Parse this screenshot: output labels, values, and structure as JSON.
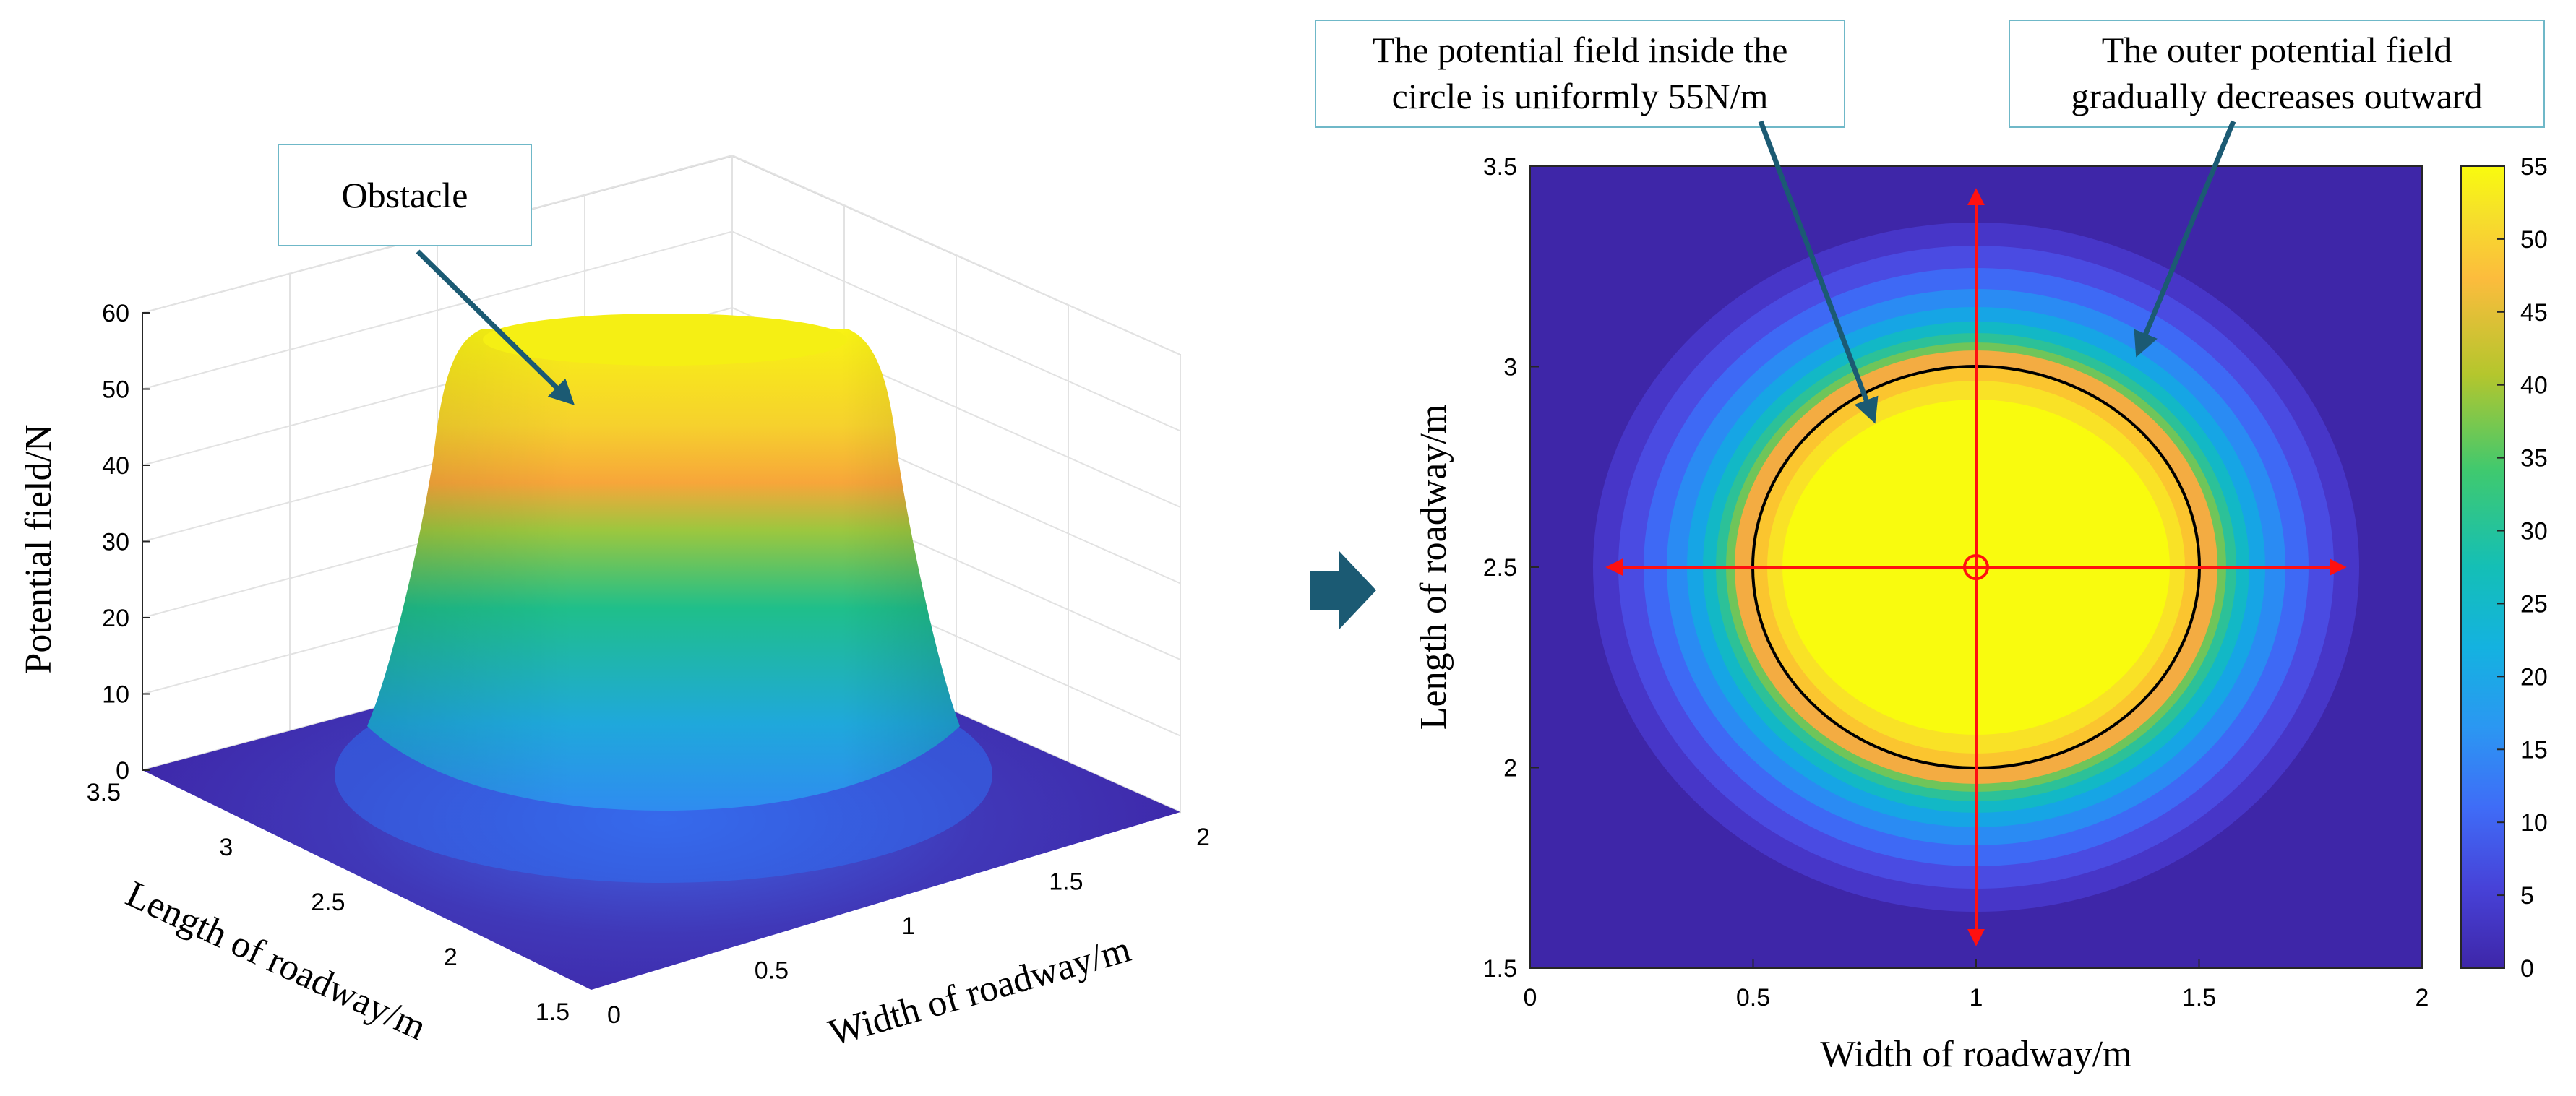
{
  "chart_data": [
    {
      "type": "surface3d",
      "title": "",
      "zlabel": "Potential field/N",
      "xlabel": "Width of roadway/m",
      "ylabel": "Length of roadway/m",
      "x_ticks": [
        "0",
        "0.5",
        "1",
        "1.5",
        "2"
      ],
      "y_ticks": [
        "1.5",
        "2",
        "2.5",
        "3",
        "3.5"
      ],
      "z_ticks": [
        "0",
        "10",
        "20",
        "30",
        "40",
        "50",
        "60"
      ],
      "xlim": [
        0,
        2
      ],
      "ylim": [
        1.5,
        3.5
      ],
      "zlim": [
        0,
        60
      ],
      "surface": {
        "center": [
          1,
          2.5
        ],
        "plateau_radius_m": 0.5,
        "plateau_value": 55,
        "outer_radius_m": 0.85,
        "base_value": 0
      },
      "annotation": "Obstacle"
    },
    {
      "type": "heatmap",
      "title": "",
      "xlabel": "Width of roadway/m",
      "ylabel": "Length of roadway/m",
      "x_ticks": [
        "0",
        "0.5",
        "1",
        "1.5",
        "2"
      ],
      "y_ticks": [
        "1.5",
        "2",
        "2.5",
        "3",
        "3.5"
      ],
      "xlim": [
        0,
        2
      ],
      "ylim": [
        1.5,
        3.5
      ],
      "colorbar_ticks": [
        "0",
        "5",
        "10",
        "15",
        "20",
        "25",
        "30",
        "35",
        "40",
        "45",
        "50",
        "55"
      ],
      "colorbar_range": [
        0,
        55
      ],
      "center": [
        1,
        2.5
      ],
      "circle_radius_m": 0.5,
      "field_radius_m": 0.85,
      "annotations": [
        {
          "line1": "The potential field inside the",
          "line2": "circle is uniformly 55N/m"
        },
        {
          "line1": "The outer potential field",
          "line2": "gradually decreases outward"
        }
      ]
    }
  ],
  "colors": {
    "arrow": "#1b5a73",
    "note_border": "#6fb8c8",
    "guide": "#ff1010",
    "background_field": "#3e26a8"
  }
}
